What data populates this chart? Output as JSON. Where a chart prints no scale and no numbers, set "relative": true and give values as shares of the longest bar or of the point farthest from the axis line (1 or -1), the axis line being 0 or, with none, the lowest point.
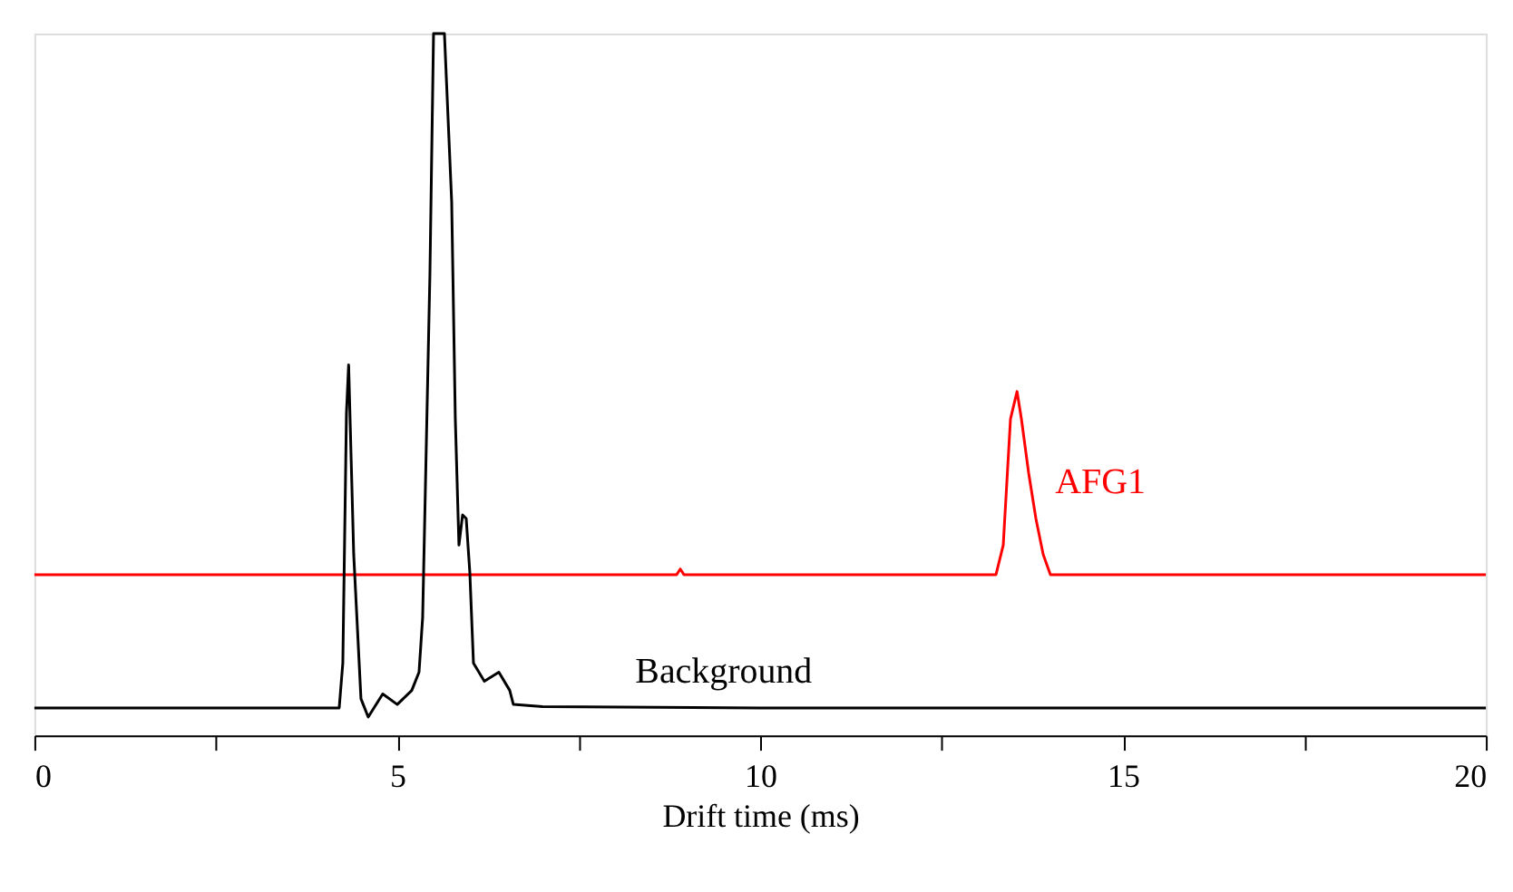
{
  "chart_data": {
    "type": "line",
    "relative": true,
    "xlabel": "Drift time (ms)",
    "xlim": [
      0,
      20
    ],
    "xticks": [
      0,
      {
        "value": 2.5,
        "label": null
      },
      5,
      {
        "value": 7.5,
        "label": null
      },
      10,
      {
        "value": 12.5,
        "label": null
      },
      15,
      {
        "value": 17.5,
        "label": null
      },
      20
    ],
    "grid": false,
    "marker": "none",
    "line_style": "solid",
    "tick_labels": "x",
    "series": [
      {
        "name": "AFG1",
        "color": "#ff0000",
        "x": [
          0,
          8.85,
          8.9,
          8.95,
          13.25,
          13.35,
          13.45,
          13.54,
          13.6,
          13.7,
          13.8,
          13.9,
          14.0,
          20
        ],
        "values": [
          0.229,
          0.229,
          0.237,
          0.229,
          0.229,
          0.271,
          0.451,
          0.49,
          0.451,
          0.374,
          0.309,
          0.258,
          0.229,
          0.229
        ]
      },
      {
        "name": "Background",
        "color": "#000000",
        "x": [
          0,
          4.2,
          4.25,
          4.3,
          4.33,
          4.4,
          4.5,
          4.6,
          4.8,
          5.0,
          5.2,
          5.3,
          5.35,
          5.45,
          5.5,
          5.65,
          5.75,
          5.8,
          5.85,
          5.9,
          5.95,
          6.0,
          6.05,
          6.2,
          6.4,
          6.55,
          6.6,
          7.0,
          10,
          15,
          20
        ],
        "values": [
          0.039,
          0.039,
          0.103,
          0.459,
          0.528,
          0.258,
          0.052,
          0.026,
          0.059,
          0.044,
          0.064,
          0.09,
          0.168,
          0.657,
          1,
          1,
          0.76,
          0.451,
          0.271,
          0.314,
          0.309,
          0.232,
          0.103,
          0.077,
          0.09,
          0.064,
          0.044,
          0.041,
          0.039,
          0.039,
          0.039
        ]
      }
    ]
  }
}
